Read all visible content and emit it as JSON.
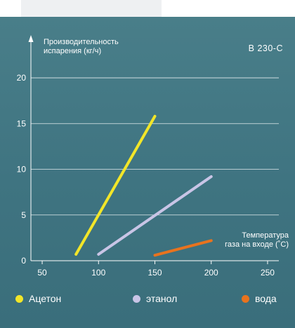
{
  "chart_data": {
    "type": "line",
    "model_label": "В 230-С",
    "ylabel_lines": [
      "Производительность",
      "испарения (кг/ч)"
    ],
    "xlabel_lines": [
      "Температура",
      "газа на входе (˚C)"
    ],
    "x_ticks": [
      50,
      100,
      150,
      200,
      250
    ],
    "y_ticks": [
      0,
      5,
      10,
      15,
      20
    ],
    "xlim": [
      40,
      260
    ],
    "ylim": [
      0,
      21
    ],
    "grid": true,
    "legend_position": "bottom",
    "series": [
      {
        "name": "Ацетон",
        "color": "#f2e629",
        "x": [
          80,
          150
        ],
        "y": [
          0.7,
          15.8
        ]
      },
      {
        "name": "этанол",
        "color": "#c9c5e6",
        "x": [
          100,
          200
        ],
        "y": [
          0.7,
          9.2
        ]
      },
      {
        "name": "вода",
        "color": "#e8731e",
        "x": [
          150,
          200
        ],
        "y": [
          0.6,
          2.2
        ]
      }
    ]
  }
}
